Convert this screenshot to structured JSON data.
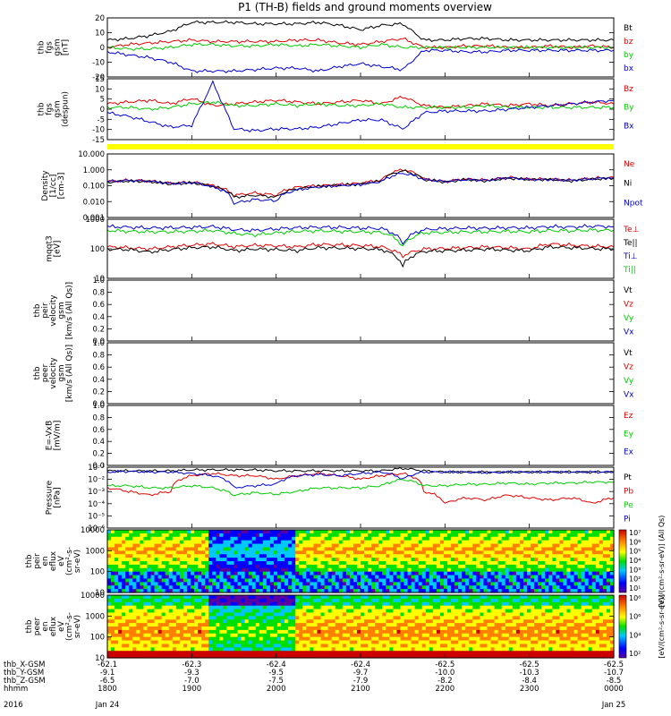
{
  "title": "P1 (TH-B) fields and ground moments overview",
  "x_axis": {
    "rows": [
      {
        "label": "thb_X-GSM",
        "values": [
          "-62.1",
          "-62.3",
          "-62.4",
          "-62.4",
          "-62.5",
          "-62.5",
          "-62.5"
        ]
      },
      {
        "label": "thb_Y-GSM",
        "values": [
          "-9.1",
          "-9.3",
          "-9.5",
          "-9.7",
          "-10.0",
          "-10.3",
          "-10.7"
        ]
      },
      {
        "label": "thb_Z-GSM",
        "values": [
          "-6.5",
          "-7.0",
          "-7.5",
          "-7.9",
          "-8.2",
          "-8.4",
          "-8.5"
        ]
      },
      {
        "label": "hhmm",
        "values": [
          "1800",
          "1900",
          "2000",
          "2100",
          "2200",
          "2300",
          "0000"
        ]
      }
    ],
    "year": "2016",
    "date_start": "Jan 24",
    "date_end": "Jan 25"
  },
  "colors": {
    "black": "#000000",
    "red": "#e00000",
    "green": "#00cc00",
    "blue": "#0000cc",
    "status_bar": "#ffff00"
  },
  "chart_data": [
    {
      "type": "line",
      "ylabel": [
        "thb",
        "fgs",
        "gsm",
        "[nT]"
      ],
      "ylim": [
        -20,
        20
      ],
      "yticks": [
        "20",
        "10",
        "0",
        "-10",
        "-20"
      ],
      "legend": [
        {
          "label": "Bt",
          "color": "#000000"
        },
        {
          "label": "bz",
          "color": "#e00000"
        },
        {
          "label": "by",
          "color": "#00cc00"
        },
        {
          "label": "bx",
          "color": "#0000cc"
        }
      ],
      "x_hours": [
        0,
        0.25,
        0.5,
        0.75,
        1.0,
        1.25,
        1.5,
        1.75,
        2.0,
        2.25,
        2.5,
        2.75,
        3.0,
        3.25,
        3.5,
        3.75,
        4.0,
        4.25,
        4.5,
        4.75,
        5.0,
        5.25,
        5.5,
        5.75,
        6.0
      ],
      "series": [
        {
          "color": "#000000",
          "values": [
            5,
            6,
            8,
            11,
            17,
            17,
            17,
            16,
            16,
            16,
            17,
            15,
            12,
            15,
            16,
            5,
            5,
            6,
            6,
            5,
            5,
            5,
            5,
            5,
            5
          ]
        },
        {
          "color": "#e00000",
          "values": [
            0,
            2,
            3,
            4,
            5,
            4,
            4,
            4,
            4,
            5,
            5,
            3,
            2,
            4,
            6,
            0,
            0,
            1,
            1,
            0,
            0,
            1,
            0,
            1,
            0
          ]
        },
        {
          "color": "#00cc00",
          "values": [
            0,
            -1,
            -1,
            0,
            2,
            2,
            1,
            1,
            2,
            1,
            2,
            1,
            0,
            2,
            0,
            0,
            0,
            0,
            0,
            0,
            0,
            0,
            0,
            0,
            0
          ]
        },
        {
          "color": "#0000cc",
          "values": [
            -3,
            -5,
            -7,
            -10,
            -16,
            -16,
            -16,
            -15,
            -14,
            -14,
            -16,
            -13,
            -11,
            -13,
            -15,
            -2,
            -2,
            -3,
            -3,
            -2,
            -2,
            -2,
            -2,
            -2,
            -2
          ]
        }
      ]
    },
    {
      "type": "line",
      "ylabel": [
        "thb",
        "fgs",
        "gsm",
        "(despun)"
      ],
      "ylim": [
        -18,
        16
      ],
      "yticks": [
        "15",
        "10",
        "5",
        "0",
        "-5",
        "-10",
        "-15"
      ],
      "legend": [
        {
          "label": "Bz",
          "color": "#e00000"
        },
        {
          "label": "By",
          "color": "#00cc00"
        },
        {
          "label": "Bx",
          "color": "#0000cc"
        }
      ],
      "x_hours": [
        0,
        0.25,
        0.5,
        0.75,
        1.0,
        1.25,
        1.5,
        1.75,
        2.0,
        2.25,
        2.5,
        2.75,
        3.0,
        3.25,
        3.5,
        3.75,
        4.0,
        4.25,
        4.5,
        4.75,
        5.0,
        5.25,
        5.5,
        5.75,
        6.0
      ],
      "series": [
        {
          "color": "#e00000",
          "values": [
            2,
            3,
            4,
            2,
            5,
            1,
            2,
            3,
            4,
            3,
            2,
            3,
            4,
            2,
            6,
            1,
            0,
            1,
            2,
            1,
            2,
            1,
            2,
            3,
            2
          ]
        },
        {
          "color": "#00cc00",
          "values": [
            0,
            0,
            -1,
            0,
            2,
            3,
            1,
            1,
            2,
            1,
            2,
            1,
            1,
            2,
            0,
            0,
            0,
            0,
            1,
            0,
            0,
            0,
            0,
            0,
            0
          ]
        },
        {
          "color": "#0000cc",
          "values": [
            -3,
            -5,
            -8,
            -11,
            -10,
            14,
            -12,
            -13,
            -12,
            -12,
            -11,
            -9,
            -7,
            -7,
            -12,
            -3,
            -2,
            -2,
            -2,
            -1,
            0,
            1,
            2,
            3,
            4
          ]
        }
      ]
    },
    {
      "type": "line",
      "scale": "log",
      "ylabel": [
        "Density",
        "[1/cc]",
        "[cm-3]"
      ],
      "ylim": [
        0.0005,
        20
      ],
      "yticks": [
        "10.000",
        "1.000",
        "0.100",
        "0.010",
        "0.001"
      ],
      "legend": [
        {
          "label": "Ne",
          "color": "#e00000"
        },
        {
          "label": "Ni",
          "color": "#000000"
        },
        {
          "label": "Npot",
          "color": "#0000cc"
        }
      ],
      "x_hours": [
        0,
        0.25,
        0.5,
        0.75,
        1.0,
        1.25,
        1.5,
        1.75,
        2.0,
        2.25,
        2.5,
        2.75,
        3.0,
        3.25,
        3.5,
        3.75,
        4.0,
        4.25,
        4.5,
        4.75,
        5.0,
        5.25,
        5.5,
        5.75,
        6.0
      ],
      "series": [
        {
          "color": "#e00000",
          "values": [
            0.2,
            0.25,
            0.22,
            0.15,
            0.18,
            0.1,
            0.02,
            0.03,
            0.02,
            0.08,
            0.1,
            0.12,
            0.15,
            0.25,
            1.5,
            0.3,
            0.2,
            0.3,
            0.25,
            0.4,
            0.3,
            0.3,
            0.25,
            0.35,
            0.4
          ]
        },
        {
          "color": "#000000",
          "values": [
            0.18,
            0.22,
            0.2,
            0.13,
            0.16,
            0.09,
            0.015,
            0.02,
            0.015,
            0.06,
            0.09,
            0.11,
            0.13,
            0.22,
            1.2,
            0.28,
            0.18,
            0.28,
            0.22,
            0.35,
            0.28,
            0.28,
            0.22,
            0.3,
            0.35
          ]
        },
        {
          "color": "#0000cc",
          "values": [
            0.2,
            0.24,
            0.21,
            0.14,
            0.17,
            0.08,
            0.005,
            0.01,
            0.008,
            0.05,
            0.08,
            0.1,
            0.12,
            0.2,
            0.8,
            0.28,
            0.2,
            0.28,
            0.24,
            0.38,
            0.28,
            0.28,
            0.24,
            0.32,
            0.38
          ]
        }
      ]
    },
    {
      "type": "line",
      "scale": "log",
      "ylabel": [
        "mqqt3",
        "[eV]"
      ],
      "ylim": [
        3,
        8000
      ],
      "yticks": [
        "1000",
        "100",
        "10"
      ],
      "legend": [
        {
          "label": "Te⊥",
          "color": "#e00000"
        },
        {
          "label": "Te||",
          "color": "#000000"
        },
        {
          "label": "Ti⊥",
          "color": "#0000cc"
        },
        {
          "label": "Ti||",
          "color": "#00cc00"
        }
      ],
      "x_hours": [
        0,
        0.25,
        0.5,
        0.75,
        1.0,
        1.25,
        1.5,
        1.75,
        2.0,
        2.25,
        2.5,
        2.75,
        3.0,
        3.25,
        3.5,
        3.75,
        4.0,
        4.25,
        4.5,
        4.75,
        5.0,
        5.25,
        5.5,
        5.75,
        6.0
      ],
      "series": [
        {
          "color": "#e00000",
          "values": [
            200,
            180,
            150,
            200,
            250,
            300,
            200,
            250,
            230,
            200,
            280,
            260,
            240,
            200,
            60,
            150,
            160,
            180,
            200,
            180,
            150,
            300,
            250,
            220,
            200
          ]
        },
        {
          "color": "#000000",
          "values": [
            150,
            140,
            100,
            140,
            180,
            200,
            120,
            150,
            140,
            120,
            180,
            170,
            160,
            140,
            15,
            110,
            120,
            130,
            150,
            130,
            120,
            200,
            180,
            160,
            150
          ]
        },
        {
          "color": "#0000cc",
          "values": [
            3000,
            2800,
            2500,
            2600,
            2700,
            3000,
            2000,
            1800,
            2200,
            2600,
            2800,
            2700,
            2500,
            2300,
            300,
            2000,
            2300,
            2500,
            2400,
            2600,
            2500,
            3000,
            2800,
            3200,
            3000
          ]
        },
        {
          "color": "#00cc00",
          "values": [
            1800,
            1600,
            1500,
            1500,
            1600,
            1800,
            1200,
            1000,
            1300,
            1600,
            1700,
            1600,
            1500,
            1400,
            200,
            1300,
            1400,
            1500,
            1500,
            1600,
            1500,
            1800,
            1700,
            1900,
            1800
          ]
        }
      ]
    },
    {
      "type": "line",
      "ylabel": [
        "thb",
        "peir",
        "velocity",
        "gsm",
        "[km/s (All Qs)]"
      ],
      "ylim": [
        0,
        1
      ],
      "yticks": [
        "1.0",
        "0.8",
        "0.6",
        "0.4",
        "0.2",
        "0.0"
      ],
      "legend": [
        {
          "label": "Vt",
          "color": "#000000"
        },
        {
          "label": "Vz",
          "color": "#e00000"
        },
        {
          "label": "Vy",
          "color": "#00cc00"
        },
        {
          "label": "Vx",
          "color": "#0000cc"
        }
      ],
      "series": []
    },
    {
      "type": "line",
      "ylabel": [
        "thb",
        "peer",
        "velocity",
        "gsm",
        "[km/s (All Qs)]"
      ],
      "ylim": [
        0,
        1
      ],
      "yticks": [
        "1.0",
        "0.8",
        "0.6",
        "0.4",
        "0.2",
        "0.0"
      ],
      "legend": [
        {
          "label": "Vt",
          "color": "#000000"
        },
        {
          "label": "Vz",
          "color": "#e00000"
        },
        {
          "label": "Vy",
          "color": "#00cc00"
        },
        {
          "label": "Vx",
          "color": "#0000cc"
        }
      ],
      "series": []
    },
    {
      "type": "line",
      "ylabel": [
        "E=-VxB",
        "[mV/m]"
      ],
      "ylim": [
        0,
        1
      ],
      "yticks": [
        "1.0",
        "0.8",
        "0.6",
        "0.4",
        "0.2",
        "0.0"
      ],
      "legend": [
        {
          "label": "Ez",
          "color": "#e00000"
        },
        {
          "label": "Ey",
          "color": "#00cc00"
        },
        {
          "label": "Ex",
          "color": "#0000cc"
        }
      ],
      "series": []
    },
    {
      "type": "line",
      "scale": "log",
      "ylabel": [
        "Pressure",
        "[nPa]"
      ],
      "ylim": [
        1e-06,
        0.1
      ],
      "yticks": [
        "10⁻¹",
        "10⁻²",
        "10⁻³",
        "10⁻⁴",
        "10⁻⁵",
        "10⁻⁶"
      ],
      "legend": [
        {
          "label": "Pt",
          "color": "#000000"
        },
        {
          "label": "Pb",
          "color": "#e00000"
        },
        {
          "label": "Pe",
          "color": "#00cc00"
        },
        {
          "label": "Pi",
          "color": "#0000cc"
        }
      ],
      "x_hours": [
        0,
        0.25,
        0.5,
        0.75,
        1.0,
        1.25,
        1.5,
        1.75,
        2.0,
        2.25,
        2.5,
        2.75,
        3.0,
        3.25,
        3.5,
        3.75,
        4.0,
        4.25,
        4.5,
        4.75,
        5.0,
        5.25,
        5.5,
        5.75,
        6.0
      ],
      "series": [
        {
          "color": "#000000",
          "values": [
            0.05,
            0.05,
            0.05,
            0.05,
            0.06,
            0.06,
            0.06,
            0.06,
            0.05,
            0.05,
            0.05,
            0.05,
            0.05,
            0.05,
            0.08,
            0.05,
            0.04,
            0.04,
            0.04,
            0.04,
            0.04,
            0.04,
            0.04,
            0.04,
            0.04
          ]
        },
        {
          "color": "#e00000",
          "values": [
            0.002,
            0.001,
            0.0005,
            0.001,
            0.02,
            0.03,
            0.02,
            0.02,
            0.01,
            0.02,
            0.03,
            0.02,
            0.01,
            0.02,
            0.03,
            0.001,
            0.0001,
            0.0003,
            0.0002,
            0.0005,
            0.0003,
            0.0002,
            0.0003,
            0.0001,
            0.0003
          ]
        },
        {
          "color": "#00cc00",
          "values": [
            0.003,
            0.003,
            0.002,
            0.002,
            0.003,
            0.002,
            0.0005,
            0.0008,
            0.0006,
            0.001,
            0.002,
            0.002,
            0.002,
            0.003,
            0.01,
            0.003,
            0.003,
            0.004,
            0.004,
            0.005,
            0.004,
            0.005,
            0.005,
            0.006,
            0.006
          ]
        },
        {
          "color": "#0000cc",
          "values": [
            0.04,
            0.045,
            0.04,
            0.04,
            0.03,
            0.02,
            0.002,
            0.003,
            0.004,
            0.02,
            0.025,
            0.02,
            0.03,
            0.04,
            0.01,
            0.04,
            0.04,
            0.04,
            0.035,
            0.04,
            0.04,
            0.04,
            0.04,
            0.04,
            0.04
          ]
        }
      ]
    },
    {
      "type": "heatmap",
      "ylabel": [
        "thb",
        "peir",
        "en",
        "eflux",
        "eV",
        "(cm²-s-",
        "sr-eV)"
      ],
      "yticks": [
        "10000",
        "1000",
        "100",
        "10"
      ],
      "colorbar_label": "[eV/(cm²-s-sr-eV)] (All Qs)",
      "colorbar_ticks": [
        "10⁷",
        "10⁶",
        "10⁵",
        "10⁴",
        "10³",
        "10²",
        "10¹"
      ]
    },
    {
      "type": "heatmap",
      "ylabel": [
        "thb",
        "peer",
        "en",
        "eflux",
        "eV",
        "(cm²-s-",
        "sr-eV)"
      ],
      "yticks": [
        "10000",
        "1000",
        "100",
        "10"
      ],
      "colorbar_label": "[eV/(cm²-s-sr-eV)]",
      "colorbar_ticks": [
        "10⁸",
        "10⁶",
        "10⁴",
        "10²"
      ]
    }
  ]
}
